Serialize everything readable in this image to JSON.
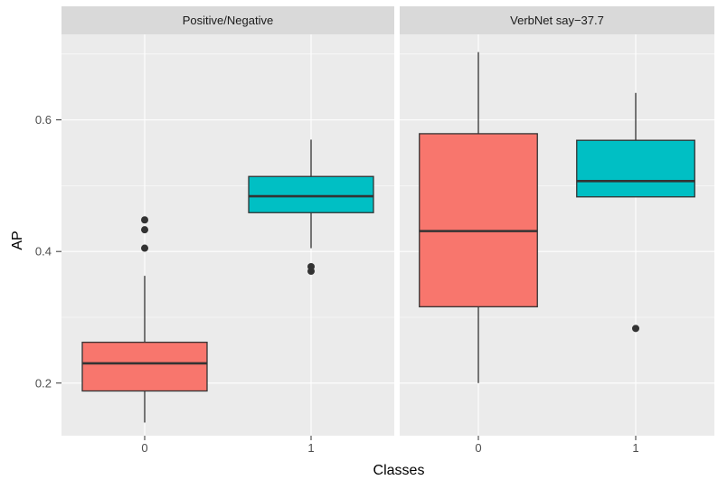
{
  "chart_data": {
    "type": "boxplot",
    "xlabel": "Classes",
    "ylabel": "AP",
    "ylim": [
      0.12,
      0.73
    ],
    "y_ticks": [
      0.2,
      0.4,
      0.6
    ],
    "y_tick_labels": [
      "0.2",
      "0.4",
      "0.6"
    ],
    "categories": [
      "0",
      "1"
    ],
    "colors": {
      "0": "#F8766D",
      "1": "#00BFC4"
    },
    "grid": true,
    "panels": [
      {
        "title": "Positive/Negative",
        "boxes": [
          {
            "class": "0",
            "min": 0.14,
            "q1": 0.188,
            "median": 0.23,
            "q3": 0.262,
            "max": 0.363,
            "outliers": [
              0.405,
              0.433,
              0.448
            ]
          },
          {
            "class": "1",
            "min": 0.405,
            "q1": 0.459,
            "median": 0.484,
            "q3": 0.514,
            "max": 0.57,
            "outliers": [
              0.37,
              0.377
            ]
          }
        ]
      },
      {
        "title": "VerbNet say−37.7",
        "boxes": [
          {
            "class": "0",
            "min": 0.2,
            "q1": 0.316,
            "median": 0.431,
            "q3": 0.579,
            "max": 0.703,
            "outliers": []
          },
          {
            "class": "1",
            "min": 0.483,
            "q1": 0.483,
            "median": 0.507,
            "q3": 0.569,
            "max": 0.641,
            "outliers": [
              0.283
            ]
          }
        ]
      }
    ]
  }
}
